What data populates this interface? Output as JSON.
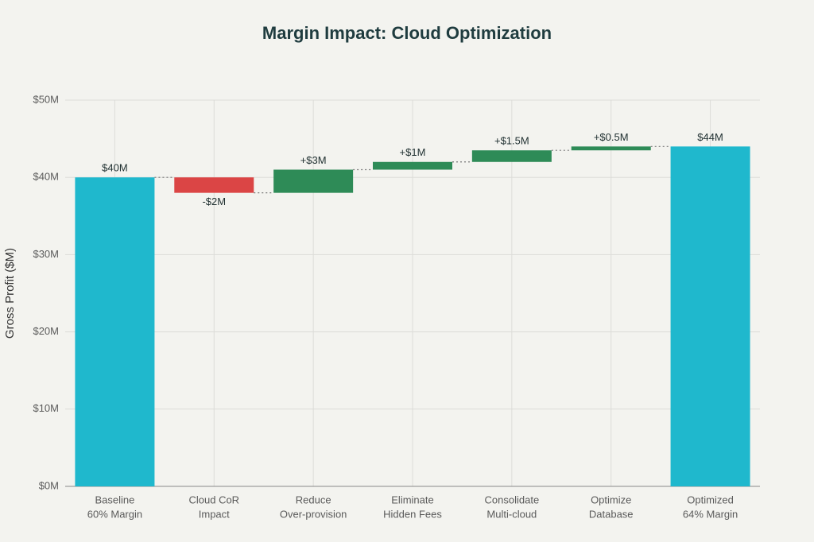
{
  "chart_data": {
    "type": "waterfall",
    "title": "Margin Impact: Cloud Optimization",
    "y_label": "Gross Profit ($M)",
    "categories": [
      [
        "Baseline",
        "60% Margin"
      ],
      [
        "Cloud CoR",
        "Impact"
      ],
      [
        "Reduce",
        "Over-provision"
      ],
      [
        "Eliminate",
        "Hidden Fees"
      ],
      [
        "Consolidate",
        "Multi-cloud"
      ],
      [
        "Optimize",
        "Database"
      ],
      [
        "Optimized",
        "64% Margin"
      ]
    ],
    "measures": [
      "absolute",
      "relative",
      "relative",
      "relative",
      "relative",
      "relative",
      "total"
    ],
    "values": [
      40,
      -2,
      3,
      1,
      1.5,
      0.5,
      44
    ],
    "value_labels": [
      "$40M",
      "-$2M",
      "+$3M",
      "+$1M",
      "+$1.5M",
      "+$0.5M",
      "$44M"
    ],
    "colors": {
      "total": "#1fb8cd",
      "increase": "#2e8b57",
      "decrease": "#db4545"
    },
    "ylim": [
      0,
      50
    ],
    "yticks": [
      {
        "value": 0,
        "label": "$0M"
      },
      {
        "value": 10,
        "label": "$10M"
      },
      {
        "value": 20,
        "label": "$20M"
      },
      {
        "value": 30,
        "label": "$30M"
      },
      {
        "value": 40,
        "label": "$40M"
      },
      {
        "value": 50,
        "label": "$50M"
      }
    ],
    "grid": true
  }
}
